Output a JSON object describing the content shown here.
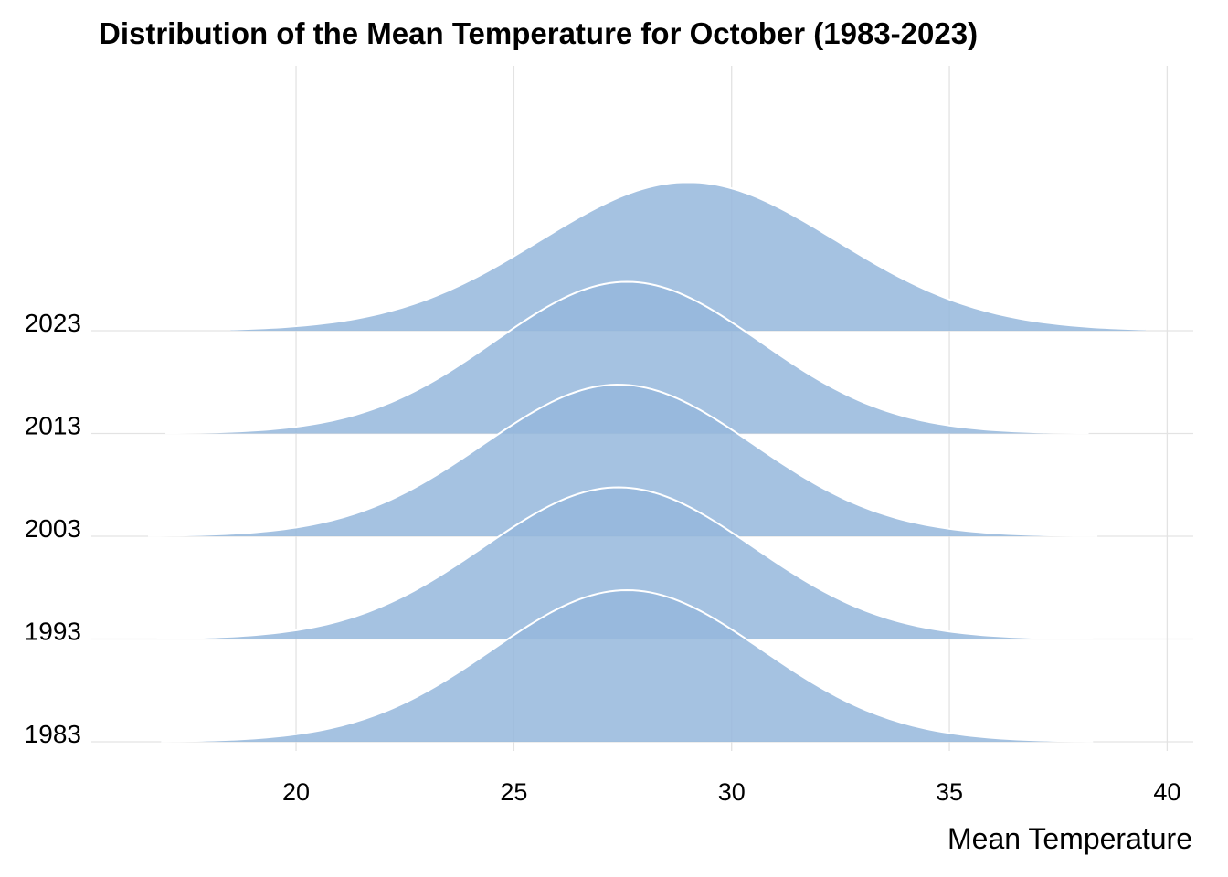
{
  "chart_data": {
    "type": "ridgeline",
    "title": "Distribution of the Mean Temperature for October (1983-2023)",
    "xlabel": "Mean Temperature",
    "ylabel": "",
    "xlim": [
      15.3,
      40.6
    ],
    "x_ticks": [
      20,
      25,
      30,
      35,
      40
    ],
    "fill_color": "#95b7dc",
    "outline_color": "#ffffff",
    "grid": true,
    "series": [
      {
        "name": "1983",
        "mean": 27.6,
        "sd": 3.1,
        "min": 16.9,
        "max": 38.3,
        "peak": 1.0
      },
      {
        "name": "1993",
        "mean": 27.4,
        "sd": 3.1,
        "min": 16.8,
        "max": 38.3,
        "peak": 1.0
      },
      {
        "name": "2003",
        "mean": 27.4,
        "sd": 3.1,
        "min": 16.6,
        "max": 38.4,
        "peak": 1.0
      },
      {
        "name": "2013",
        "mean": 27.6,
        "sd": 3.05,
        "min": 17.0,
        "max": 38.2,
        "peak": 1.0
      },
      {
        "name": "2023",
        "mean": 29.0,
        "sd": 3.4,
        "min": 18.5,
        "max": 39.5,
        "peak": 0.98
      }
    ]
  }
}
